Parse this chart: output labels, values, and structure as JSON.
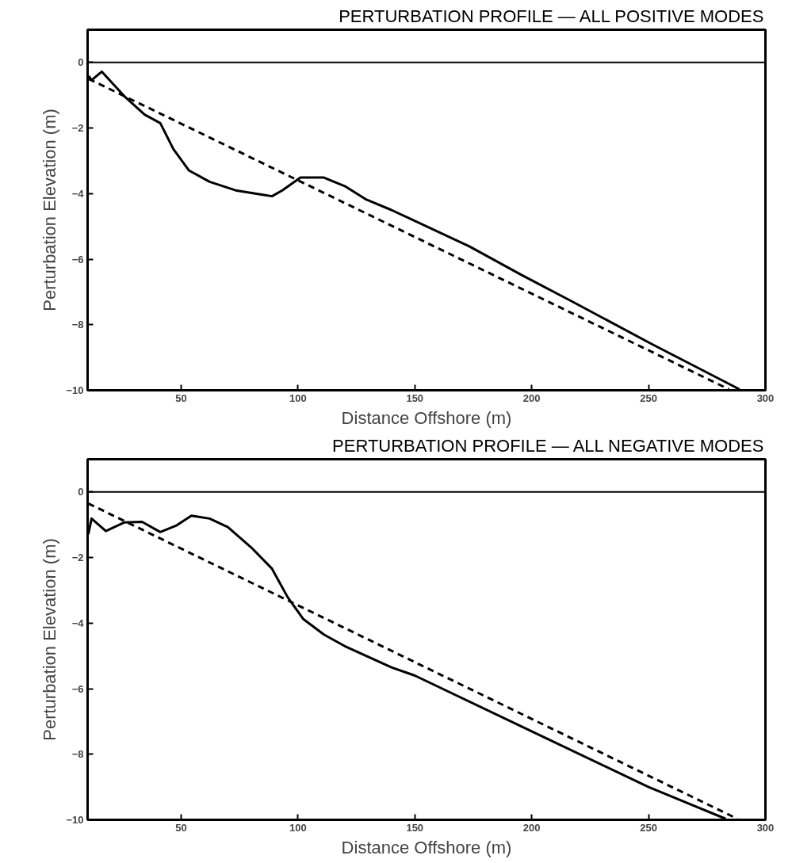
{
  "chart_data": [
    {
      "type": "line",
      "title": "PERTURBATION PROFILE — ALL POSITIVE MODES",
      "xlabel": "Distance Offshore (m)",
      "ylabel": "Perturbation Elevation (m)",
      "xlim": [
        10,
        300
      ],
      "ylim": [
        -10,
        1
      ],
      "xticks": [
        50,
        100,
        150,
        200,
        250,
        300
      ],
      "yticks": [
        -10,
        -8,
        -6,
        -4,
        -2,
        0
      ],
      "grid": false,
      "ref_lines": [
        {
          "axis": "y",
          "value": 0,
          "color": "#000000"
        }
      ],
      "series": [
        {
          "color": "#000000",
          "line_style": "solid",
          "x": [
            10.5,
            11.7,
            16.1,
            25.6,
            34.4,
            41.1,
            46.7,
            53.3,
            62.2,
            73.3,
            84.4,
            88.9,
            93.3,
            101.1,
            111.1,
            120,
            128.9,
            140,
            173.3,
            195.6,
            217.8,
            251.1,
            288.9
          ],
          "values": [
            -0.41,
            -0.54,
            -0.28,
            -1.02,
            -1.59,
            -1.85,
            -2.64,
            -3.29,
            -3.64,
            -3.9,
            -4.03,
            -4.08,
            -3.9,
            -3.51,
            -3.51,
            -3.77,
            -4.17,
            -4.5,
            -5.61,
            -6.48,
            -7.31,
            -8.58,
            -9.97
          ]
        },
        {
          "color": "#000000",
          "line_style": "dashed",
          "x": [
            10.5,
            284.4
          ],
          "values": [
            -0.5,
            -9.97
          ]
        }
      ]
    },
    {
      "type": "line",
      "title": "PERTURBATION PROFILE — ALL NEGATIVE MODES",
      "xlabel": "Distance Offshore (m)",
      "ylabel": "Perturbation Elevation (m)",
      "xlim": [
        10,
        300
      ],
      "ylim": [
        -10,
        1
      ],
      "xticks": [
        50,
        100,
        150,
        200,
        250,
        300
      ],
      "yticks": [
        -10,
        -8,
        -6,
        -4,
        -2,
        0
      ],
      "grid": false,
      "ref_lines": [
        {
          "axis": "y",
          "value": 0,
          "color": "#000000"
        }
      ],
      "series": [
        {
          "color": "#000000",
          "line_style": "solid",
          "x": [
            10.3,
            11.7,
            17.8,
            25.6,
            33.3,
            41.1,
            47.8,
            54.4,
            62.2,
            70,
            80,
            88.9,
            95.6,
            102.2,
            111.1,
            120,
            140,
            150,
            200,
            250,
            283
          ],
          "values": [
            -1.29,
            -0.81,
            -1.19,
            -0.93,
            -0.91,
            -1.22,
            -1.03,
            -0.72,
            -0.81,
            -1.07,
            -1.69,
            -2.34,
            -3.21,
            -3.87,
            -4.35,
            -4.7,
            -5.35,
            -5.6,
            -7.3,
            -9.0,
            -9.97
          ]
        },
        {
          "color": "#000000",
          "line_style": "dashed",
          "x": [
            10.3,
            288
          ],
          "values": [
            -0.35,
            -9.97
          ]
        }
      ]
    }
  ]
}
